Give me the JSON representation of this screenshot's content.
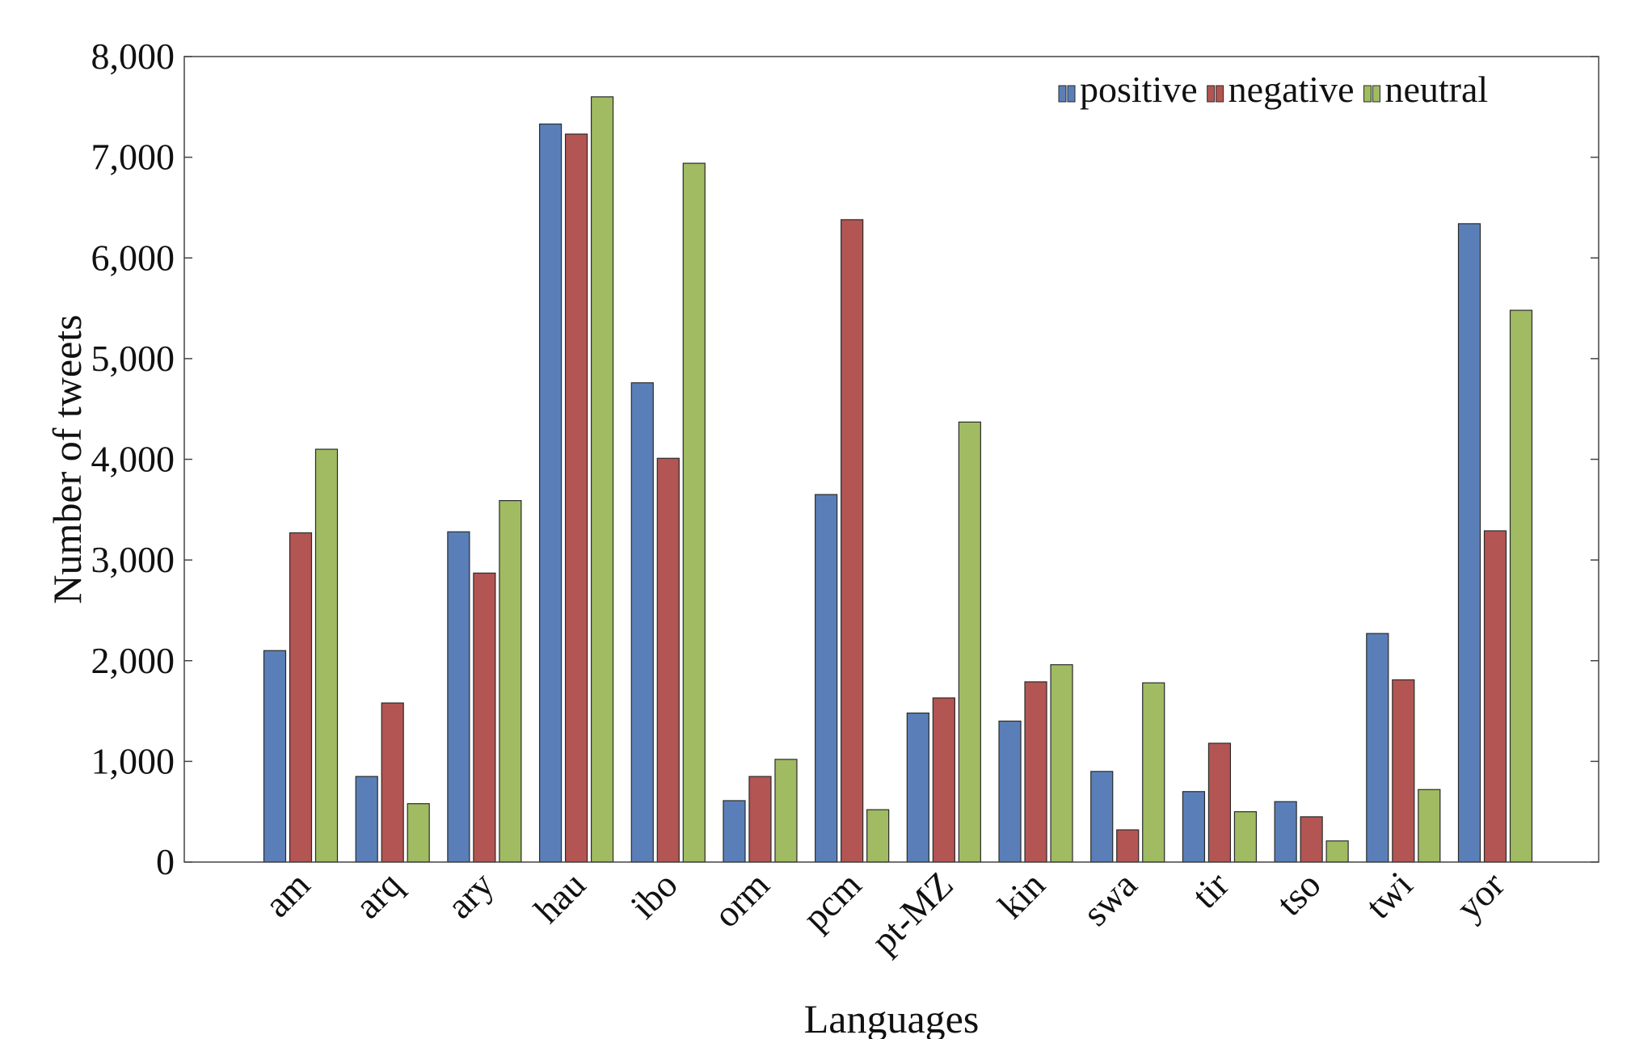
{
  "chart_data": {
    "type": "bar",
    "title": "",
    "xlabel": "Languages",
    "ylabel": "Number of tweets",
    "ylim": [
      0,
      8000
    ],
    "yticks": [
      0,
      1000,
      2000,
      3000,
      4000,
      5000,
      6000,
      7000,
      8000
    ],
    "ytick_labels": [
      "0",
      "1,000",
      "2,000",
      "3,000",
      "4,000",
      "5,000",
      "6,000",
      "7,000",
      "8,000"
    ],
    "categories": [
      "am",
      "arq",
      "ary",
      "hau",
      "ibo",
      "orm",
      "pcm",
      "pt-MZ",
      "kin",
      "swa",
      "tir",
      "tso",
      "twi",
      "yor"
    ],
    "series": [
      {
        "name": "positive",
        "color": "#5a7fb8",
        "values": [
          2100,
          850,
          3280,
          7330,
          4760,
          610,
          3650,
          1480,
          1400,
          900,
          700,
          600,
          2270,
          6340
        ]
      },
      {
        "name": "negative",
        "color": "#b35552",
        "values": [
          3270,
          1580,
          2870,
          7230,
          4010,
          850,
          6380,
          1630,
          1790,
          320,
          1180,
          450,
          1810,
          3290
        ]
      },
      {
        "name": "neutral",
        "color": "#a0bb62",
        "values": [
          4100,
          580,
          3590,
          7600,
          6940,
          1020,
          520,
          4370,
          1960,
          1780,
          500,
          210,
          720,
          5480
        ]
      }
    ],
    "legend": {
      "position": "top-right",
      "orientation": "horizontal"
    },
    "grid": false
  }
}
